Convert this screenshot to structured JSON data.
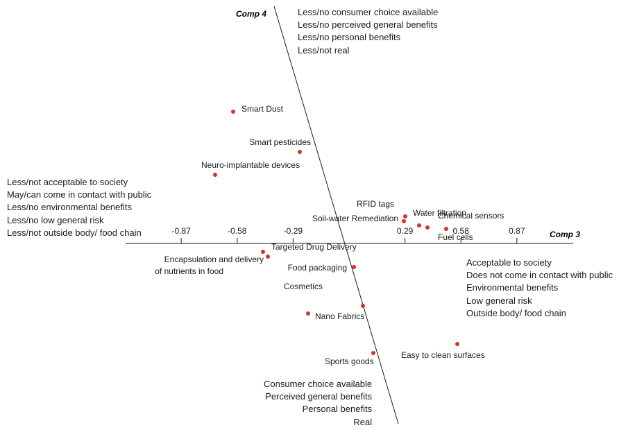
{
  "chart_data": {
    "type": "scatter",
    "x_axis_title": "Comp 3",
    "y_axis_title": "Comp 4",
    "x_ticks": [
      -0.87,
      -0.58,
      -0.29,
      0.29,
      0.58,
      0.87
    ],
    "x_tick_labels": [
      "-0.87",
      "-0.58",
      "-0.29",
      "0.29",
      "0.58",
      "0.87"
    ],
    "xlim": [
      -1.15,
      1.15
    ],
    "ylim": [
      -1.0,
      1.35
    ],
    "grid": false,
    "points": [
      {
        "label": "Smart Dust",
        "x": -0.63,
        "y": 0.73
      },
      {
        "label": "Smart pesticides",
        "x": -0.28,
        "y": 0.53
      },
      {
        "label": "Neuro-implantable devices",
        "x": -0.71,
        "y": 0.38
      },
      {
        "label": "RFID tags",
        "x": 0.26,
        "y": 0.16
      },
      {
        "label": "Soil-water Remediation",
        "x": 0.25,
        "y": 0.12
      },
      {
        "label": "Water filtration",
        "x": 0.33,
        "y": 0.1
      },
      {
        "label": "Chemical sensors",
        "x": 0.37,
        "y": 0.08
      },
      {
        "label": "Fuel cells",
        "x": 0.47,
        "y": 0.07
      },
      {
        "label": "Targeted Drug Delivery",
        "x": -0.45,
        "y": -0.06
      },
      {
        "label": "Encapsulation and delivery of nutrients in food",
        "x": -0.43,
        "y": -0.08
      },
      {
        "label": "Food packaging",
        "x": -0.01,
        "y": -0.14
      },
      {
        "label": "Cosmetics",
        "x": 0.04,
        "y": -0.41
      },
      {
        "label": "Nano Fabrics",
        "x": -0.26,
        "y": -0.46
      },
      {
        "label": "Easy to clean surfaces",
        "x": 0.57,
        "y": -0.64
      },
      {
        "label": "Sports goods",
        "x": 0.09,
        "y": -0.7
      }
    ]
  },
  "quadrant_labels": {
    "top": [
      "Less/no consumer choice available",
      "Less/no perceived general benefits",
      "Less/no personal benefits",
      "Less/not real"
    ],
    "left": [
      "Less/not acceptable to society",
      "May/can come in contact with public",
      "Less/no environmental benefits",
      "Less/no low general risk",
      "Less/not outside body/ food chain"
    ],
    "right": [
      "Acceptable to society",
      "Does not come in contact with public",
      "Environmental benefits",
      "Low general risk",
      "Outside body/ food chain"
    ],
    "bottom": [
      "Consumer choice available",
      "Perceived general benefits",
      "Personal benefits",
      "Real"
    ]
  },
  "colors": {
    "point": "#d9302a",
    "axis": "#1a1a1a"
  }
}
